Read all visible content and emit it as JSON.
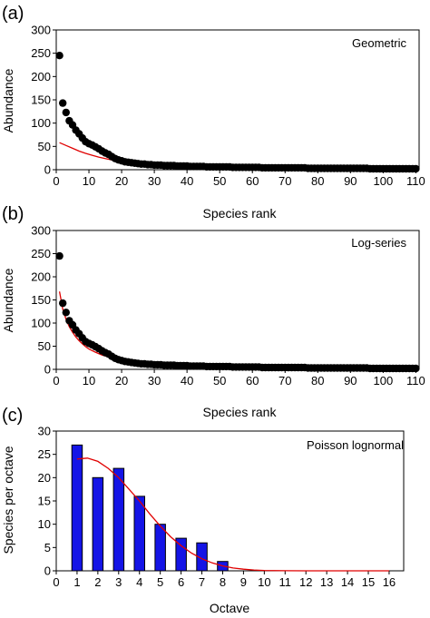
{
  "chart_data": [
    {
      "id": "a",
      "type": "scatter",
      "panel_label": "(a)",
      "model_label": "Geometric",
      "xlabel": "Species rank",
      "ylabel": "Abundance",
      "xlim": [
        0,
        111
      ],
      "ylim": [
        0,
        300
      ],
      "xticks": [
        0,
        10,
        20,
        30,
        40,
        50,
        60,
        70,
        80,
        90,
        100,
        110
      ],
      "yticks": [
        0,
        50,
        100,
        150,
        200,
        250,
        300
      ],
      "point_color": "#000000",
      "fit_color": "#e00000",
      "points": [
        [
          1,
          245
        ],
        [
          2,
          143
        ],
        [
          3,
          123
        ],
        [
          4,
          105
        ],
        [
          5,
          96
        ],
        [
          6,
          85
        ],
        [
          7,
          77
        ],
        [
          8,
          68
        ],
        [
          9,
          60
        ],
        [
          10,
          56
        ],
        [
          11,
          53
        ],
        [
          12,
          49
        ],
        [
          13,
          45
        ],
        [
          14,
          40
        ],
        [
          15,
          36
        ],
        [
          16,
          33
        ],
        [
          17,
          28
        ],
        [
          18,
          24
        ],
        [
          19,
          21
        ],
        [
          20,
          19
        ],
        [
          21,
          17
        ],
        [
          22,
          16
        ],
        [
          23,
          15
        ],
        [
          24,
          14
        ],
        [
          25,
          13
        ],
        [
          26,
          12
        ],
        [
          27,
          12
        ],
        [
          28,
          11
        ],
        [
          29,
          11
        ],
        [
          30,
          10
        ],
        [
          31,
          10
        ],
        [
          32,
          10
        ],
        [
          33,
          9
        ],
        [
          34,
          9
        ],
        [
          35,
          9
        ],
        [
          36,
          9
        ],
        [
          37,
          8
        ],
        [
          38,
          8
        ],
        [
          39,
          8
        ],
        [
          40,
          8
        ],
        [
          41,
          7
        ],
        [
          42,
          7
        ],
        [
          43,
          7
        ],
        [
          44,
          7
        ],
        [
          45,
          7
        ],
        [
          46,
          6
        ],
        [
          47,
          6
        ],
        [
          48,
          6
        ],
        [
          49,
          6
        ],
        [
          50,
          6
        ],
        [
          51,
          6
        ],
        [
          52,
          6
        ],
        [
          53,
          6
        ],
        [
          54,
          5
        ],
        [
          55,
          5
        ],
        [
          56,
          5
        ],
        [
          57,
          5
        ],
        [
          58,
          5
        ],
        [
          59,
          5
        ],
        [
          60,
          5
        ],
        [
          61,
          5
        ],
        [
          62,
          5
        ],
        [
          63,
          4
        ],
        [
          64,
          4
        ],
        [
          65,
          4
        ],
        [
          66,
          4
        ],
        [
          67,
          4
        ],
        [
          68,
          4
        ],
        [
          69,
          4
        ],
        [
          70,
          4
        ],
        [
          71,
          4
        ],
        [
          72,
          4
        ],
        [
          73,
          4
        ],
        [
          74,
          4
        ],
        [
          75,
          4
        ],
        [
          76,
          4
        ],
        [
          77,
          3
        ],
        [
          78,
          3
        ],
        [
          79,
          3
        ],
        [
          80,
          3
        ],
        [
          81,
          3
        ],
        [
          82,
          3
        ],
        [
          83,
          3
        ],
        [
          84,
          3
        ],
        [
          85,
          3
        ],
        [
          86,
          3
        ],
        [
          87,
          3
        ],
        [
          88,
          3
        ],
        [
          89,
          3
        ],
        [
          90,
          3
        ],
        [
          91,
          3
        ],
        [
          92,
          3
        ],
        [
          93,
          3
        ],
        [
          94,
          3
        ],
        [
          95,
          3
        ],
        [
          96,
          2
        ],
        [
          97,
          2
        ],
        [
          98,
          2
        ],
        [
          99,
          2
        ],
        [
          100,
          2
        ],
        [
          101,
          2
        ],
        [
          102,
          2
        ],
        [
          103,
          2
        ],
        [
          104,
          2
        ],
        [
          105,
          2
        ],
        [
          106,
          2
        ],
        [
          107,
          2
        ],
        [
          108,
          2
        ],
        [
          109,
          2
        ],
        [
          110,
          2
        ]
      ],
      "fit": [
        [
          1,
          58
        ],
        [
          3,
          52
        ],
        [
          5,
          46
        ],
        [
          7,
          40
        ],
        [
          9,
          35
        ],
        [
          11,
          31
        ],
        [
          13,
          27
        ],
        [
          15,
          24
        ],
        [
          17,
          21
        ],
        [
          19,
          19
        ],
        [
          21,
          16
        ],
        [
          23,
          14
        ],
        [
          25,
          12
        ],
        [
          28,
          10
        ],
        [
          31,
          8
        ],
        [
          35,
          6
        ],
        [
          40,
          5
        ],
        [
          45,
          4
        ],
        [
          50,
          3
        ],
        [
          60,
          2
        ],
        [
          70,
          1.5
        ],
        [
          80,
          1
        ],
        [
          90,
          0.8
        ],
        [
          100,
          0.6
        ],
        [
          110,
          0.5
        ]
      ]
    },
    {
      "id": "b",
      "type": "scatter",
      "panel_label": "(b)",
      "model_label": "Log-series",
      "xlabel": "Species rank",
      "ylabel": "Abundance",
      "xlim": [
        0,
        111
      ],
      "ylim": [
        0,
        300
      ],
      "xticks": [
        0,
        10,
        20,
        30,
        40,
        50,
        60,
        70,
        80,
        90,
        100,
        110
      ],
      "yticks": [
        0,
        50,
        100,
        150,
        200,
        250,
        300
      ],
      "point_color": "#000000",
      "fit_color": "#e00000",
      "points": [
        [
          1,
          245
        ],
        [
          2,
          143
        ],
        [
          3,
          123
        ],
        [
          4,
          105
        ],
        [
          5,
          96
        ],
        [
          6,
          85
        ],
        [
          7,
          77
        ],
        [
          8,
          68
        ],
        [
          9,
          60
        ],
        [
          10,
          56
        ],
        [
          11,
          53
        ],
        [
          12,
          49
        ],
        [
          13,
          45
        ],
        [
          14,
          40
        ],
        [
          15,
          36
        ],
        [
          16,
          33
        ],
        [
          17,
          28
        ],
        [
          18,
          24
        ],
        [
          19,
          21
        ],
        [
          20,
          19
        ],
        [
          21,
          17
        ],
        [
          22,
          16
        ],
        [
          23,
          15
        ],
        [
          24,
          14
        ],
        [
          25,
          13
        ],
        [
          26,
          12
        ],
        [
          27,
          12
        ],
        [
          28,
          11
        ],
        [
          29,
          11
        ],
        [
          30,
          10
        ],
        [
          31,
          10
        ],
        [
          32,
          10
        ],
        [
          33,
          9
        ],
        [
          34,
          9
        ],
        [
          35,
          9
        ],
        [
          36,
          9
        ],
        [
          37,
          8
        ],
        [
          38,
          8
        ],
        [
          39,
          8
        ],
        [
          40,
          8
        ],
        [
          41,
          7
        ],
        [
          42,
          7
        ],
        [
          43,
          7
        ],
        [
          44,
          7
        ],
        [
          45,
          7
        ],
        [
          46,
          6
        ],
        [
          47,
          6
        ],
        [
          48,
          6
        ],
        [
          49,
          6
        ],
        [
          50,
          6
        ],
        [
          51,
          6
        ],
        [
          52,
          6
        ],
        [
          53,
          6
        ],
        [
          54,
          5
        ],
        [
          55,
          5
        ],
        [
          56,
          5
        ],
        [
          57,
          5
        ],
        [
          58,
          5
        ],
        [
          59,
          5
        ],
        [
          60,
          5
        ],
        [
          61,
          5
        ],
        [
          62,
          5
        ],
        [
          63,
          4
        ],
        [
          64,
          4
        ],
        [
          65,
          4
        ],
        [
          66,
          4
        ],
        [
          67,
          4
        ],
        [
          68,
          4
        ],
        [
          69,
          4
        ],
        [
          70,
          4
        ],
        [
          71,
          4
        ],
        [
          72,
          4
        ],
        [
          73,
          4
        ],
        [
          74,
          4
        ],
        [
          75,
          4
        ],
        [
          76,
          4
        ],
        [
          77,
          3
        ],
        [
          78,
          3
        ],
        [
          79,
          3
        ],
        [
          80,
          3
        ],
        [
          81,
          3
        ],
        [
          82,
          3
        ],
        [
          83,
          3
        ],
        [
          84,
          3
        ],
        [
          85,
          3
        ],
        [
          86,
          3
        ],
        [
          87,
          3
        ],
        [
          88,
          3
        ],
        [
          89,
          3
        ],
        [
          90,
          3
        ],
        [
          91,
          3
        ],
        [
          92,
          3
        ],
        [
          93,
          3
        ],
        [
          94,
          3
        ],
        [
          95,
          3
        ],
        [
          96,
          2
        ],
        [
          97,
          2
        ],
        [
          98,
          2
        ],
        [
          99,
          2
        ],
        [
          100,
          2
        ],
        [
          101,
          2
        ],
        [
          102,
          2
        ],
        [
          103,
          2
        ],
        [
          104,
          2
        ],
        [
          105,
          2
        ],
        [
          106,
          2
        ],
        [
          107,
          2
        ],
        [
          108,
          2
        ],
        [
          109,
          2
        ],
        [
          110,
          2
        ]
      ],
      "fit": [
        [
          1,
          168
        ],
        [
          2,
          130
        ],
        [
          3,
          108
        ],
        [
          4,
          92
        ],
        [
          5,
          80
        ],
        [
          6,
          70
        ],
        [
          7,
          62
        ],
        [
          8,
          55
        ],
        [
          9,
          49
        ],
        [
          10,
          44
        ],
        [
          12,
          37
        ],
        [
          14,
          31
        ],
        [
          16,
          27
        ],
        [
          18,
          23
        ],
        [
          20,
          20
        ],
        [
          23,
          17
        ],
        [
          26,
          14
        ],
        [
          30,
          11
        ],
        [
          35,
          9
        ],
        [
          40,
          7
        ],
        [
          50,
          5
        ],
        [
          60,
          4
        ],
        [
          70,
          3.2
        ],
        [
          80,
          2.7
        ],
        [
          90,
          2.3
        ],
        [
          100,
          2
        ],
        [
          110,
          1.8
        ]
      ]
    },
    {
      "id": "c",
      "type": "bar",
      "panel_label": "(c)",
      "model_label": "Poisson lognormal",
      "xlabel": "Octave",
      "ylabel": "Species per octave",
      "xlim": [
        0,
        16.7
      ],
      "ylim": [
        0,
        30
      ],
      "xticks": [
        0,
        1,
        2,
        3,
        4,
        5,
        6,
        7,
        8,
        9,
        10,
        11,
        12,
        13,
        14,
        15,
        16
      ],
      "yticks": [
        0,
        5,
        10,
        15,
        20,
        25,
        30
      ],
      "bar_color": "#1414e6",
      "fit_color": "#e00000",
      "categories": [
        1,
        2,
        3,
        4,
        5,
        6,
        7,
        8
      ],
      "values": [
        27,
        20,
        22,
        16,
        10,
        7,
        6,
        2
      ],
      "fit": [
        [
          1,
          24
        ],
        [
          1.5,
          24.2
        ],
        [
          2,
          23.5
        ],
        [
          2.5,
          22
        ],
        [
          3,
          20
        ],
        [
          3.5,
          17.5
        ],
        [
          4,
          15
        ],
        [
          4.5,
          12.2
        ],
        [
          5,
          9.6
        ],
        [
          5.5,
          7.3
        ],
        [
          6,
          5.4
        ],
        [
          6.5,
          3.8
        ],
        [
          7,
          2.6
        ],
        [
          7.5,
          1.7
        ],
        [
          8,
          1.05
        ],
        [
          8.5,
          0.6
        ],
        [
          9,
          0.35
        ],
        [
          9.5,
          0.18
        ],
        [
          10,
          0.08
        ],
        [
          11,
          0.02
        ],
        [
          12,
          0
        ],
        [
          13,
          0
        ],
        [
          14,
          0
        ],
        [
          15,
          0
        ],
        [
          16,
          0
        ]
      ]
    }
  ]
}
